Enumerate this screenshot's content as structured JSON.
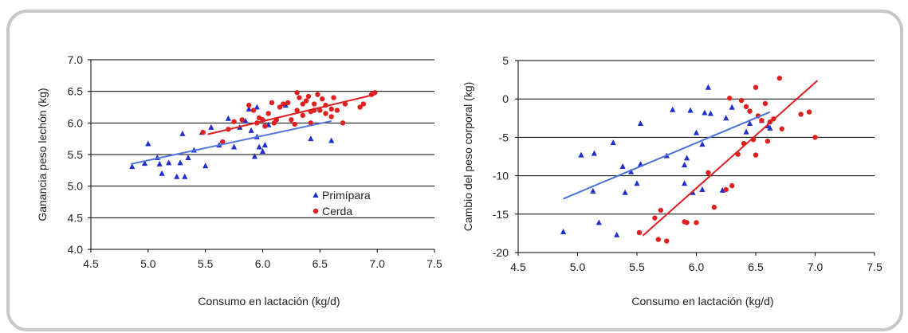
{
  "chart_data": [
    {
      "type": "scatter",
      "xlabel": "Consumo en lactación (kg/d)",
      "ylabel": "Ganancia peso lechón (kg)",
      "xlim": [
        4.5,
        7.5
      ],
      "ylim": [
        4.0,
        7.0
      ],
      "x_ticks": [
        "4.5",
        "5.0",
        "5.5",
        "6.0",
        "6.5",
        "7.0",
        "7.5"
      ],
      "y_ticks": [
        "4.0",
        "4.5",
        "5.0",
        "5.5",
        "6.0",
        "6.5",
        "7.0"
      ],
      "grid": "horizontal",
      "legend": "bottom-right inside",
      "series": [
        {
          "name": "Primípara",
          "marker": "triangle",
          "color": "#1f2fd0",
          "points": [
            [
              4.86,
              5.31
            ],
            [
              4.97,
              5.36
            ],
            [
              5.0,
              5.67
            ],
            [
              5.08,
              5.45
            ],
            [
              5.1,
              5.35
            ],
            [
              5.12,
              5.2
            ],
            [
              5.18,
              5.37
            ],
            [
              5.25,
              5.15
            ],
            [
              5.28,
              5.37
            ],
            [
              5.3,
              5.83
            ],
            [
              5.32,
              5.15
            ],
            [
              5.35,
              5.45
            ],
            [
              5.4,
              5.57
            ],
            [
              5.47,
              5.85
            ],
            [
              5.5,
              5.32
            ],
            [
              5.55,
              5.93
            ],
            [
              5.62,
              5.65
            ],
            [
              5.7,
              6.07
            ],
            [
              5.75,
              5.62
            ],
            [
              5.8,
              5.93
            ],
            [
              5.85,
              6.03
            ],
            [
              5.88,
              6.22
            ],
            [
              5.9,
              5.88
            ],
            [
              5.93,
              5.47
            ],
            [
              5.95,
              5.78
            ],
            [
              5.95,
              6.25
            ],
            [
              5.97,
              5.62
            ],
            [
              6.0,
              5.55
            ],
            [
              6.02,
              5.65
            ],
            [
              6.05,
              5.97
            ],
            [
              6.2,
              6.28
            ],
            [
              6.42,
              5.75
            ],
            [
              6.6,
              5.72
            ]
          ],
          "trend": [
            [
              4.85,
              5.35
            ],
            [
              6.6,
              6.03
            ]
          ],
          "trend_color": "#5577dd"
        },
        {
          "name": "Cerda",
          "marker": "circle",
          "color": "#e02020",
          "points": [
            [
              5.48,
              5.85
            ],
            [
              5.65,
              5.7
            ],
            [
              5.7,
              5.9
            ],
            [
              5.75,
              6.02
            ],
            [
              5.82,
              6.05
            ],
            [
              5.88,
              6.28
            ],
            [
              5.92,
              6.2
            ],
            [
              5.95,
              6.0
            ],
            [
              5.97,
              6.08
            ],
            [
              6.0,
              6.05
            ],
            [
              6.02,
              5.95
            ],
            [
              6.05,
              6.15
            ],
            [
              6.08,
              6.32
            ],
            [
              6.1,
              6.0
            ],
            [
              6.12,
              6.05
            ],
            [
              6.15,
              6.25
            ],
            [
              6.18,
              6.3
            ],
            [
              6.22,
              6.32
            ],
            [
              6.25,
              6.05
            ],
            [
              6.28,
              5.98
            ],
            [
              6.3,
              6.48
            ],
            [
              6.3,
              6.2
            ],
            [
              6.32,
              6.4
            ],
            [
              6.35,
              6.12
            ],
            [
              6.35,
              6.3
            ],
            [
              6.38,
              6.35
            ],
            [
              6.4,
              6.42
            ],
            [
              6.42,
              6.18
            ],
            [
              6.42,
              6.0
            ],
            [
              6.45,
              6.2
            ],
            [
              6.45,
              6.3
            ],
            [
              6.48,
              6.45
            ],
            [
              6.5,
              6.2
            ],
            [
              6.52,
              6.38
            ],
            [
              6.55,
              6.15
            ],
            [
              6.55,
              6.28
            ],
            [
              6.6,
              6.22
            ],
            [
              6.6,
              6.1
            ],
            [
              6.62,
              6.4
            ],
            [
              6.65,
              6.2
            ],
            [
              6.7,
              6.0
            ],
            [
              6.72,
              6.3
            ],
            [
              6.85,
              6.25
            ],
            [
              6.88,
              6.3
            ],
            [
              6.95,
              6.45
            ],
            [
              6.98,
              6.48
            ]
          ],
          "trend": [
            [
              5.52,
              5.82
            ],
            [
              6.98,
              6.45
            ]
          ],
          "trend_color": "#dd2020"
        }
      ]
    },
    {
      "type": "scatter",
      "xlabel": "Consumo en lactación (kg/d)",
      "ylabel": "Cambio del peso corporal (kg)",
      "xlim": [
        4.5,
        7.5
      ],
      "ylim": [
        -20,
        5
      ],
      "x_ticks": [
        "4.5",
        "5.0",
        "5.5",
        "6.0",
        "6.5",
        "7.0",
        "7.5"
      ],
      "y_ticks": [
        "-20",
        "-15",
        "-10",
        "-5",
        "0",
        "5"
      ],
      "grid": "horizontal",
      "series": [
        {
          "name": "Primípara",
          "marker": "triangle",
          "color": "#1f2fd0",
          "points": [
            [
              4.88,
              -17.3
            ],
            [
              5.03,
              -7.3
            ],
            [
              5.13,
              -12.0
            ],
            [
              5.14,
              -7.1
            ],
            [
              5.18,
              -16.1
            ],
            [
              5.3,
              -5.7
            ],
            [
              5.33,
              -17.7
            ],
            [
              5.38,
              -8.8
            ],
            [
              5.4,
              -12.2
            ],
            [
              5.45,
              -9.5
            ],
            [
              5.5,
              -11.0
            ],
            [
              5.53,
              -8.5
            ],
            [
              5.53,
              -3.2
            ],
            [
              5.75,
              -7.4
            ],
            [
              5.8,
              -1.4
            ],
            [
              5.9,
              -11.0
            ],
            [
              5.9,
              -8.6
            ],
            [
              5.92,
              -7.7
            ],
            [
              5.95,
              -1.5
            ],
            [
              5.97,
              -12.2
            ],
            [
              6.0,
              -4.4
            ],
            [
              6.05,
              -11.8
            ],
            [
              6.05,
              -5.9
            ],
            [
              6.07,
              -1.8
            ],
            [
              6.1,
              1.5
            ],
            [
              6.12,
              -1.9
            ],
            [
              6.22,
              -11.9
            ],
            [
              6.25,
              -2.5
            ],
            [
              6.3,
              -1.1
            ],
            [
              6.42,
              -4.3
            ],
            [
              6.45,
              -3.2
            ],
            [
              6.55,
              -2.8
            ],
            [
              6.6,
              -3.5
            ],
            [
              6.62,
              -3.8
            ]
          ],
          "trend": [
            [
              4.88,
              -13.0
            ],
            [
              6.62,
              -1.7
            ]
          ],
          "trend_color": "#4a72d8"
        },
        {
          "name": "Cerda",
          "marker": "circle",
          "color": "#e02020",
          "points": [
            [
              5.52,
              -17.4
            ],
            [
              5.65,
              -15.5
            ],
            [
              5.68,
              -18.3
            ],
            [
              5.7,
              -14.5
            ],
            [
              5.75,
              -18.5
            ],
            [
              5.9,
              -16.0
            ],
            [
              5.92,
              -16.1
            ],
            [
              6.0,
              -16.1
            ],
            [
              6.1,
              -9.6
            ],
            [
              6.15,
              -14.1
            ],
            [
              6.25,
              -11.8
            ],
            [
              6.28,
              0.1
            ],
            [
              6.3,
              -11.3
            ],
            [
              6.35,
              -7.2
            ],
            [
              6.38,
              -0.2
            ],
            [
              6.4,
              -5.8
            ],
            [
              6.42,
              -1.0
            ],
            [
              6.45,
              -1.6
            ],
            [
              6.48,
              -5.3
            ],
            [
              6.5,
              -7.3
            ],
            [
              6.5,
              1.5
            ],
            [
              6.52,
              -2.2
            ],
            [
              6.55,
              -2.8
            ],
            [
              6.58,
              -0.6
            ],
            [
              6.6,
              -5.5
            ],
            [
              6.62,
              -3.0
            ],
            [
              6.65,
              -2.6
            ],
            [
              6.7,
              2.7
            ],
            [
              6.72,
              -3.9
            ],
            [
              6.88,
              -2.0
            ],
            [
              6.95,
              -1.7
            ],
            [
              7.0,
              -5.0
            ]
          ],
          "trend": [
            [
              5.55,
              -17.8
            ],
            [
              7.02,
              2.4
            ]
          ],
          "trend_color": "#dd2020"
        }
      ]
    }
  ]
}
